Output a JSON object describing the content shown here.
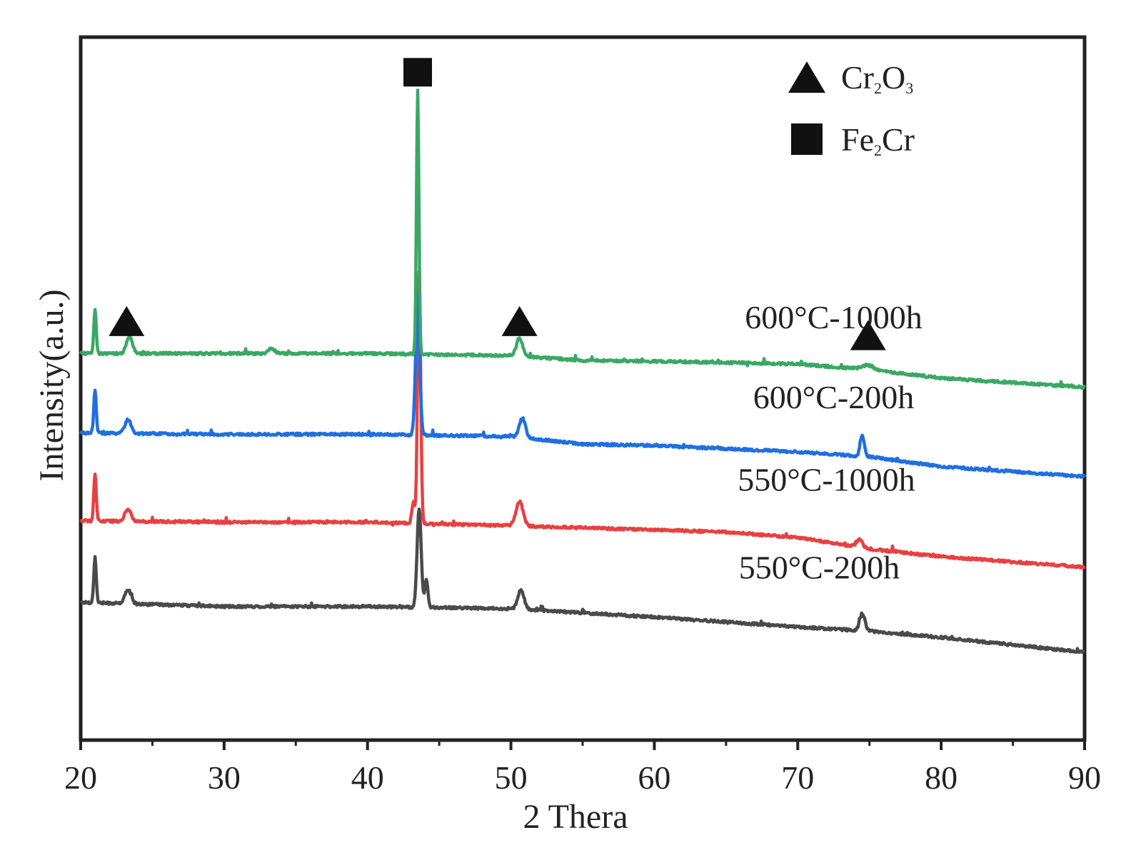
{
  "chart_data": {
    "type": "line",
    "title": "",
    "xlabel": "2 Thera",
    "ylabel": "Intensity(a.u.)",
    "xlim": [
      20,
      90
    ],
    "ylim": [
      0,
      100
    ],
    "x_ticks": [
      20,
      30,
      40,
      50,
      60,
      70,
      80,
      90
    ],
    "x_tick_labels": [
      "20",
      "30",
      "40",
      "50",
      "60",
      "70",
      "80",
      "90"
    ],
    "y_ticks_visible": false,
    "grid": false,
    "legend": {
      "position": "top-right",
      "entries": [
        {
          "marker": "triangle",
          "base": "Cr",
          "sub1": "2",
          "mid": "O",
          "sub2": "3"
        },
        {
          "marker": "square",
          "base": "Fe",
          "sub1": "2",
          "mid": "Cr",
          "sub2": ""
        }
      ]
    },
    "peak_markers": [
      {
        "type": "square",
        "x": 43.5,
        "y": 95.0
      },
      {
        "type": "triangle",
        "x": 23.2,
        "y": 59.5
      },
      {
        "type": "triangle",
        "x": 50.6,
        "y": 59.5
      },
      {
        "type": "triangle",
        "x": 74.9,
        "y": 57.5
      }
    ],
    "series": [
      {
        "name": "550°C-200h",
        "label": "550°C-200h",
        "label_pos": [
          71.5,
          23.0
        ],
        "color": "#4a4a4a",
        "baseline": [
          [
            20,
            19.6
          ],
          [
            30,
            19.0
          ],
          [
            40,
            19.0
          ],
          [
            50,
            18.7
          ],
          [
            55,
            18.1
          ],
          [
            60,
            17.5
          ],
          [
            70,
            16.1
          ],
          [
            75,
            15.5
          ],
          [
            80,
            14.6
          ],
          [
            90,
            12.5
          ]
        ],
        "peaks": [
          [
            21.0,
            6.5,
            0.12
          ],
          [
            23.3,
            2.0,
            0.3
          ],
          [
            43.6,
            14.0,
            0.2
          ],
          [
            44.1,
            4.0,
            0.15
          ],
          [
            50.7,
            2.8,
            0.3
          ],
          [
            74.5,
            2.5,
            0.25
          ]
        ]
      },
      {
        "name": "550°C-1000h",
        "label": "550°C-1000h",
        "label_pos": [
          72.0,
          35.5
        ],
        "color": "#e84040",
        "baseline": [
          [
            20,
            31.2
          ],
          [
            30,
            31.0
          ],
          [
            40,
            31.0
          ],
          [
            50,
            30.5
          ],
          [
            55,
            30.2
          ],
          [
            60,
            29.9
          ],
          [
            65,
            29.6
          ],
          [
            70,
            28.8
          ],
          [
            75,
            27.2
          ],
          [
            80,
            26.1
          ],
          [
            90,
            24.6
          ]
        ],
        "peaks": [
          [
            21.0,
            6.6,
            0.12
          ],
          [
            23.3,
            1.8,
            0.3
          ],
          [
            43.2,
            3.0,
            0.15
          ],
          [
            43.6,
            36.0,
            0.15
          ],
          [
            50.6,
            3.5,
            0.35
          ],
          [
            74.3,
            1.1,
            0.3
          ]
        ]
      },
      {
        "name": "600°C-200h",
        "label": "600°C-200h",
        "label_pos": [
          72.5,
          47.2
        ],
        "color": "#1f6fe0",
        "baseline": [
          [
            20,
            43.7
          ],
          [
            30,
            43.5
          ],
          [
            40,
            43.5
          ],
          [
            50,
            43.2
          ],
          [
            55,
            42.1
          ],
          [
            60,
            41.9
          ],
          [
            70,
            41.0
          ],
          [
            75,
            40.3
          ],
          [
            80,
            38.9
          ],
          [
            90,
            37.5
          ]
        ],
        "peaks": [
          [
            21.0,
            6.2,
            0.12
          ],
          [
            23.3,
            2.0,
            0.3
          ],
          [
            43.5,
            20.0,
            0.2
          ],
          [
            50.8,
            2.8,
            0.3
          ],
          [
            74.5,
            3.0,
            0.2
          ]
        ]
      },
      {
        "name": "600°C-1000h",
        "label": "600°C-1000h",
        "label_pos": [
          72.5,
          58.6
        ],
        "color": "#3aa864",
        "baseline": [
          [
            20,
            55.0
          ],
          [
            30,
            55.0
          ],
          [
            40,
            55.0
          ],
          [
            50,
            54.7
          ],
          [
            55,
            54.0
          ],
          [
            60,
            53.9
          ],
          [
            70,
            53.5
          ],
          [
            75,
            52.7
          ],
          [
            80,
            51.5
          ],
          [
            90,
            50.2
          ]
        ],
        "peaks": [
          [
            21.0,
            6.2,
            0.12
          ],
          [
            23.4,
            2.3,
            0.3
          ],
          [
            33.3,
            0.7,
            0.3
          ],
          [
            43.5,
            37.5,
            0.12
          ],
          [
            50.6,
            2.6,
            0.3
          ],
          [
            74.9,
            0.6,
            0.6
          ]
        ]
      }
    ]
  }
}
